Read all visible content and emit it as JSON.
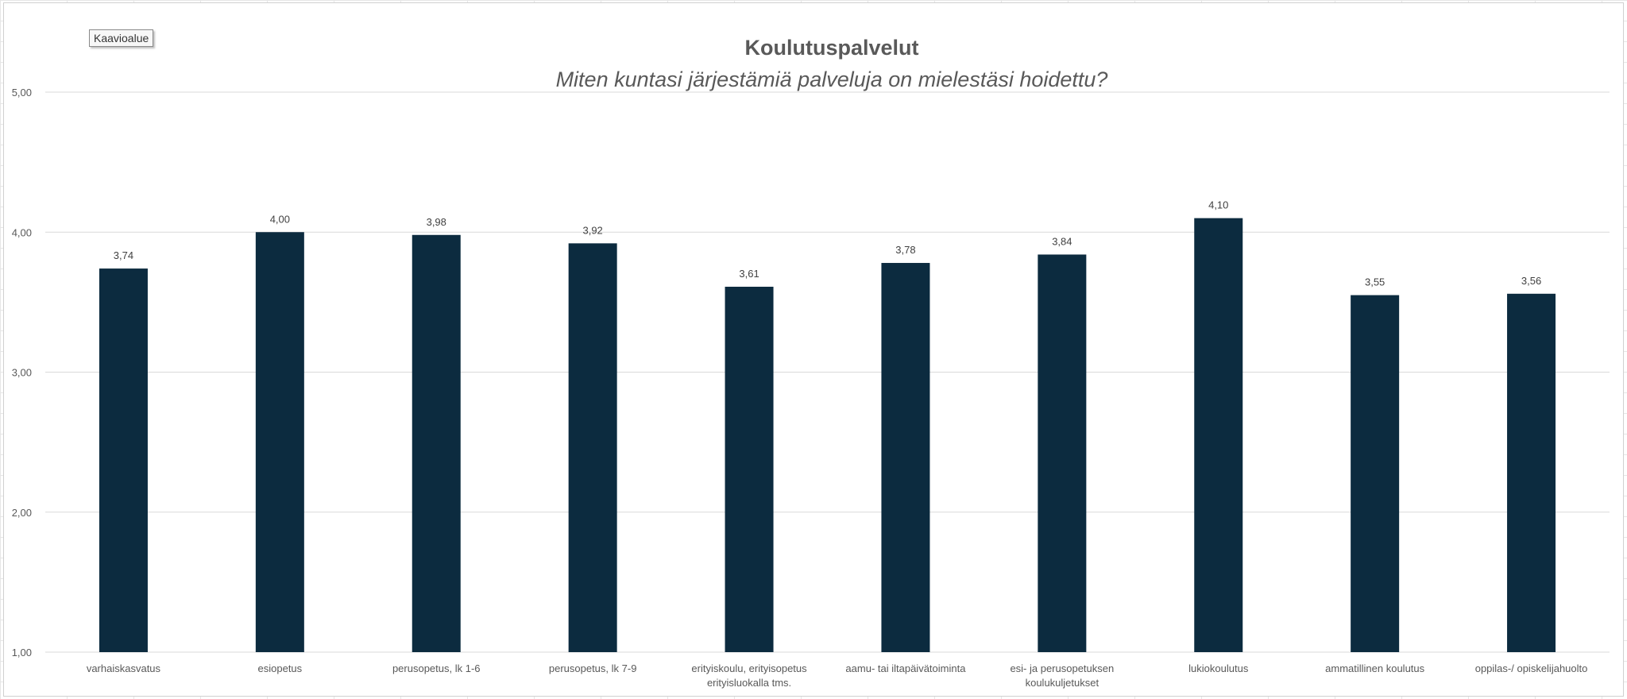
{
  "tooltip": "Kaavioalue",
  "colors": {
    "bar": "#0c2b3f",
    "gridline": "#d9d9d9",
    "text": "#595959"
  },
  "chart_data": {
    "type": "bar",
    "title": "Koulutuspalvelut",
    "subtitle": "Miten kuntasi järjestämiä palveluja on mielestäsi hoidettu?",
    "xlabel": "",
    "ylabel": "",
    "ylim": [
      1,
      5
    ],
    "yticks": [
      "1,00",
      "2,00",
      "3,00",
      "4,00",
      "5,00"
    ],
    "grid": true,
    "legend": "none",
    "categories": [
      [
        "varhaiskasvatus"
      ],
      [
        "esiopetus"
      ],
      [
        "perusopetus, lk 1-6"
      ],
      [
        "perusopetus, lk 7-9"
      ],
      [
        "erityiskoulu, erityisopetus",
        "erityisluokalla tms."
      ],
      [
        "aamu- tai iltapäivätoiminta"
      ],
      [
        "esi- ja perusopetuksen",
        "koulukuljetukset"
      ],
      [
        "lukiokoulutus"
      ],
      [
        "ammatillinen koulutus"
      ],
      [
        "oppilas-/ opiskelijahuolto"
      ]
    ],
    "values": [
      3.74,
      4.0,
      3.98,
      3.92,
      3.61,
      3.78,
      3.84,
      4.1,
      3.55,
      3.56
    ],
    "value_labels": [
      "3,74",
      "4,00",
      "3,98",
      "3,92",
      "3,61",
      "3,78",
      "3,84",
      "4,10",
      "3,55",
      "3,56"
    ]
  }
}
